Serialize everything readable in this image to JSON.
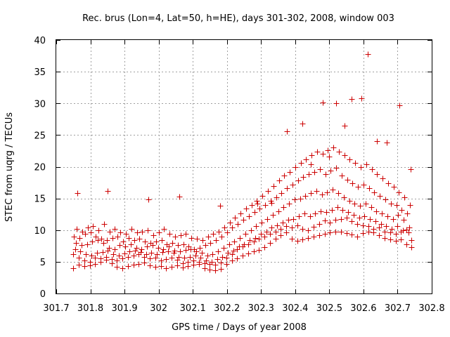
{
  "chart_data": {
    "type": "scatter",
    "title": "Rec. brus (Lon=4, Lat=50, h=HE), days 301-302, 2008, window 003",
    "xlabel": "GPS time / Days of year 2008",
    "ylabel": "STEC from uqrg / TECUs",
    "xlim": [
      301.7,
      302.8
    ],
    "ylim": [
      0,
      40
    ],
    "xticks": [
      "301.7",
      "301.8",
      "301.9",
      "302",
      "302.1",
      "302.2",
      "302.3",
      "302.4",
      "302.5",
      "302.6",
      "302.7",
      "302.8"
    ],
    "yticks": [
      "0",
      "5",
      "10",
      "15",
      "20",
      "25",
      "30",
      "35",
      "40"
    ],
    "grid": true,
    "marker": "plus",
    "color": "#cc0000",
    "series": [
      {
        "name": "",
        "x": [
          301.75,
          301.766,
          301.782,
          301.798,
          301.814,
          301.83,
          301.846,
          301.862,
          301.878,
          301.894,
          301.91,
          301.926,
          301.942,
          301.958,
          301.974,
          301.99,
          302.006,
          302.022,
          302.038,
          302.054,
          302.07,
          302.086,
          302.102,
          302.118,
          302.134,
          302.15,
          302.166,
          302.182,
          302.198,
          302.214,
          302.23,
          302.246,
          302.262,
          302.278,
          302.294,
          302.31,
          302.326,
          302.342,
          302.358,
          302.374,
          302.39,
          302.406,
          302.422,
          302.438,
          302.454,
          302.47,
          302.486,
          302.502,
          302.518,
          302.534,
          302.55,
          302.566,
          302.582,
          302.598,
          302.614,
          302.63,
          302.646,
          302.662,
          302.678,
          302.694,
          302.71,
          302.726,
          302.74,
          301.75,
          301.766,
          301.782,
          301.798,
          301.814,
          301.83,
          301.846,
          301.862,
          301.878,
          301.894,
          301.91,
          301.926,
          301.942,
          301.958,
          301.974,
          301.99,
          302.006,
          302.022,
          302.038,
          302.054,
          302.07,
          302.086,
          302.102,
          302.118,
          302.134,
          302.15,
          302.166,
          302.182,
          302.198,
          302.214,
          302.23,
          302.246,
          302.262,
          302.278,
          302.294,
          302.31,
          302.326,
          302.342,
          302.358,
          302.374,
          302.39,
          302.406,
          302.422,
          302.438,
          302.454,
          302.47,
          302.486,
          302.502,
          302.518,
          302.534,
          302.55,
          302.566,
          302.582,
          302.598,
          302.614,
          302.63,
          302.646,
          302.662,
          302.678,
          302.694,
          302.71,
          302.726,
          302.74,
          301.755,
          301.771,
          301.787,
          301.803,
          301.819,
          301.835,
          301.851,
          301.867,
          301.883,
          301.899,
          301.915,
          301.931,
          301.947,
          301.963,
          301.979,
          301.995,
          302.011,
          302.027,
          302.043,
          302.059,
          302.075,
          302.091,
          302.107,
          302.123,
          302.139,
          302.155,
          302.171,
          302.187,
          302.203,
          302.219,
          302.235,
          302.251,
          302.267,
          302.283,
          302.299,
          302.315,
          302.331,
          302.347,
          302.363,
          302.379,
          302.395,
          302.411,
          302.427,
          302.443,
          302.459,
          302.475,
          302.491,
          302.507,
          302.523,
          302.539,
          302.555,
          302.571,
          302.587,
          302.603,
          302.619,
          302.635,
          302.651,
          302.667,
          302.683,
          302.699,
          302.715,
          302.731,
          301.758,
          301.774,
          301.79,
          301.806,
          301.822,
          301.838,
          301.854,
          301.87,
          301.886,
          301.902,
          301.918,
          301.934,
          301.95,
          301.966,
          301.982,
          301.998,
          302.014,
          302.03,
          302.046,
          302.062,
          302.078,
          302.094,
          302.11,
          302.126,
          302.142,
          302.158,
          302.174,
          302.19,
          302.206,
          302.222,
          302.238,
          302.254,
          302.27,
          302.286,
          302.302,
          302.318,
          302.334,
          302.35,
          302.366,
          302.382,
          302.398,
          302.414,
          302.43,
          302.446,
          302.462,
          302.478,
          302.494,
          302.51,
          302.526,
          302.542,
          302.558,
          302.574,
          302.59,
          302.606,
          302.622,
          302.638,
          302.654,
          302.67,
          302.686,
          302.702,
          302.718,
          302.734,
          301.752,
          301.768,
          301.784,
          301.8,
          301.816,
          301.832,
          301.848,
          301.864,
          301.88,
          301.896,
          301.912,
          301.928,
          301.944,
          301.96,
          301.976,
          301.992,
          302.008,
          302.024,
          302.04,
          302.056,
          302.072,
          302.088,
          302.104,
          302.12,
          302.136,
          302.152,
          302.168,
          302.184,
          302.2,
          302.216,
          302.232,
          302.248,
          302.264,
          302.28,
          302.296,
          302.312,
          302.328,
          302.344,
          302.36,
          302.376,
          302.392,
          302.408,
          302.424,
          302.44,
          302.456,
          302.472,
          302.488,
          302.504,
          302.52,
          302.536,
          302.552,
          302.568,
          302.584,
          302.6,
          302.616,
          302.632,
          302.648,
          302.664,
          302.68,
          302.696,
          302.712,
          302.728,
          301.76,
          301.776,
          301.792,
          301.808,
          301.824,
          301.84,
          301.856,
          301.872,
          301.888,
          301.904,
          301.92,
          301.936,
          301.952,
          301.968,
          301.984,
          302.0,
          302.016,
          302.032,
          302.048,
          302.064,
          302.08,
          302.096,
          302.112,
          302.128,
          302.144,
          302.16,
          302.176,
          302.192,
          302.208,
          302.224,
          302.24,
          302.256,
          302.272,
          302.288,
          302.304,
          302.32,
          302.336,
          302.352,
          302.368,
          302.384,
          302.4,
          302.416,
          302.432,
          302.448,
          302.464,
          302.48,
          302.496,
          302.512,
          302.528,
          302.544,
          302.56,
          302.576,
          302.592,
          302.608,
          302.624,
          302.64,
          302.656,
          302.672,
          302.688,
          302.704,
          302.72,
          302.736,
          301.762,
          301.85,
          301.97,
          302.06,
          302.18,
          302.29,
          302.33,
          302.375,
          302.42,
          302.445,
          302.48,
          302.5,
          302.52,
          302.545,
          302.565,
          302.595,
          302.612,
          302.64,
          302.668,
          302.705,
          302.738
        ],
        "y": [
          4.0,
          4.5,
          4.3,
          4.4,
          4.6,
          5.0,
          5.3,
          4.8,
          4.2,
          4.0,
          4.3,
          4.5,
          4.6,
          4.9,
          4.4,
          4.2,
          4.3,
          4.0,
          4.2,
          4.4,
          4.1,
          4.3,
          4.5,
          4.6,
          4.0,
          3.8,
          3.7,
          3.9,
          4.6,
          5.2,
          5.5,
          6.0,
          6.3,
          6.6,
          6.9,
          7.3,
          8.0,
          8.6,
          9.2,
          9.6,
          8.6,
          8.3,
          8.5,
          8.8,
          9.0,
          9.2,
          9.4,
          9.6,
          9.8,
          9.7,
          9.5,
          9.3,
          9.0,
          9.5,
          9.8,
          9.6,
          9.2,
          8.8,
          8.5,
          8.3,
          8.5,
          7.8,
          7.3,
          6.2,
          5.6,
          5.2,
          5.0,
          5.6,
          5.5,
          5.8,
          5.4,
          5.2,
          5.5,
          5.8,
          6.0,
          6.2,
          5.8,
          5.5,
          5.6,
          5.2,
          5.4,
          5.6,
          5.3,
          4.8,
          5.0,
          5.2,
          5.0,
          4.8,
          4.6,
          4.5,
          4.9,
          5.6,
          6.2,
          7.0,
          7.4,
          7.8,
          8.2,
          8.6,
          9.0,
          9.4,
          9.8,
          10.2,
          10.6,
          10.4,
          10.8,
          10.2,
          10.0,
          10.5,
          11.0,
          11.5,
          11.2,
          11.6,
          11.8,
          12.0,
          11.4,
          11.0,
          10.8,
          10.6,
          10.2,
          10.4,
          9.8,
          9.6,
          9.4,
          9.8,
          10.1,
          8.4,
          7.0,
          6.6,
          6.2,
          6.0,
          6.4,
          6.5,
          6.8,
          6.2,
          6.0,
          6.3,
          6.6,
          6.8,
          6.5,
          6.2,
          6.4,
          6.2,
          6.5,
          6.7,
          6.4,
          5.8,
          5.6,
          5.8,
          6.0,
          5.6,
          5.2,
          5.0,
          5.4,
          5.8,
          6.4,
          6.8,
          7.4,
          7.8,
          8.4,
          8.8,
          9.4,
          9.8,
          10.4,
          10.8,
          11.2,
          11.6,
          11.8,
          12.2,
          12.6,
          12.2,
          12.6,
          13.0,
          12.8,
          13.2,
          13.6,
          13.2,
          12.8,
          12.4,
          12.0,
          12.2,
          11.8,
          11.4,
          11.0,
          10.6,
          10.2,
          10.6,
          10.0,
          9.6,
          8.0,
          7.6,
          7.8,
          8.2,
          8.4,
          8.0,
          7.2,
          7.0,
          7.6,
          7.4,
          7.8,
          7.2,
          7.0,
          7.4,
          7.6,
          7.2,
          7.0,
          7.4,
          6.8,
          6.6,
          6.9,
          7.0,
          6.6,
          6.4,
          6.0,
          6.2,
          6.6,
          7.2,
          7.8,
          8.2,
          8.8,
          9.4,
          10.0,
          10.6,
          11.2,
          11.8,
          12.4,
          13.0,
          13.6,
          14.2,
          14.8,
          15.0,
          15.4,
          15.8,
          16.2,
          15.6,
          16.0,
          16.4,
          15.8,
          15.2,
          14.6,
          14.2,
          13.8,
          14.2,
          13.6,
          13.0,
          12.6,
          12.2,
          11.8,
          12.4,
          11.6,
          10.4,
          9.0,
          8.8,
          9.4,
          9.6,
          9.0,
          8.6,
          8.4,
          8.8,
          9.0,
          8.2,
          8.8,
          8.4,
          8.6,
          8.2,
          8.0,
          8.2,
          8.4,
          7.8,
          8.0,
          7.6,
          7.8,
          7.4,
          7.0,
          7.2,
          7.6,
          8.0,
          8.4,
          9.0,
          9.6,
          10.4,
          11.0,
          11.6,
          12.2,
          12.8,
          13.4,
          14.0,
          14.6,
          15.2,
          15.8,
          16.6,
          17.2,
          17.8,
          18.4,
          18.8,
          19.2,
          19.6,
          18.8,
          19.4,
          19.8,
          18.6,
          18.0,
          17.4,
          16.8,
          17.2,
          16.6,
          16.0,
          15.4,
          14.8,
          14.2,
          14.0,
          13.2,
          12.6,
          10.2,
          9.8,
          10.4,
          10.6,
          10.0,
          11.0,
          9.8,
          10.2,
          9.6,
          9.4,
          10.2,
          9.6,
          9.8,
          10.0,
          9.2,
          9.6,
          10.2,
          9.4,
          9.0,
          9.2,
          9.4,
          8.8,
          8.6,
          8.4,
          9.0,
          9.4,
          9.8,
          10.4,
          11.2,
          12.0,
          12.6,
          13.4,
          14.0,
          14.6,
          15.4,
          16.2,
          17.0,
          17.8,
          18.6,
          19.2,
          20.0,
          20.6,
          21.2,
          21.8,
          22.4,
          22.0,
          22.6,
          23.0,
          22.4,
          21.8,
          21.2,
          20.6,
          20.0,
          20.4,
          19.6,
          18.8,
          18.2,
          17.4,
          16.8,
          16.0,
          15.2,
          14.0,
          15.9,
          16.2,
          14.8,
          15.3,
          13.8,
          14.2,
          14.3,
          25.6,
          26.8,
          20.4,
          30.1,
          21.6,
          30.0,
          26.5,
          30.7,
          30.8,
          37.8,
          24.0,
          23.8,
          29.7,
          19.6
        ]
      }
    ]
  }
}
